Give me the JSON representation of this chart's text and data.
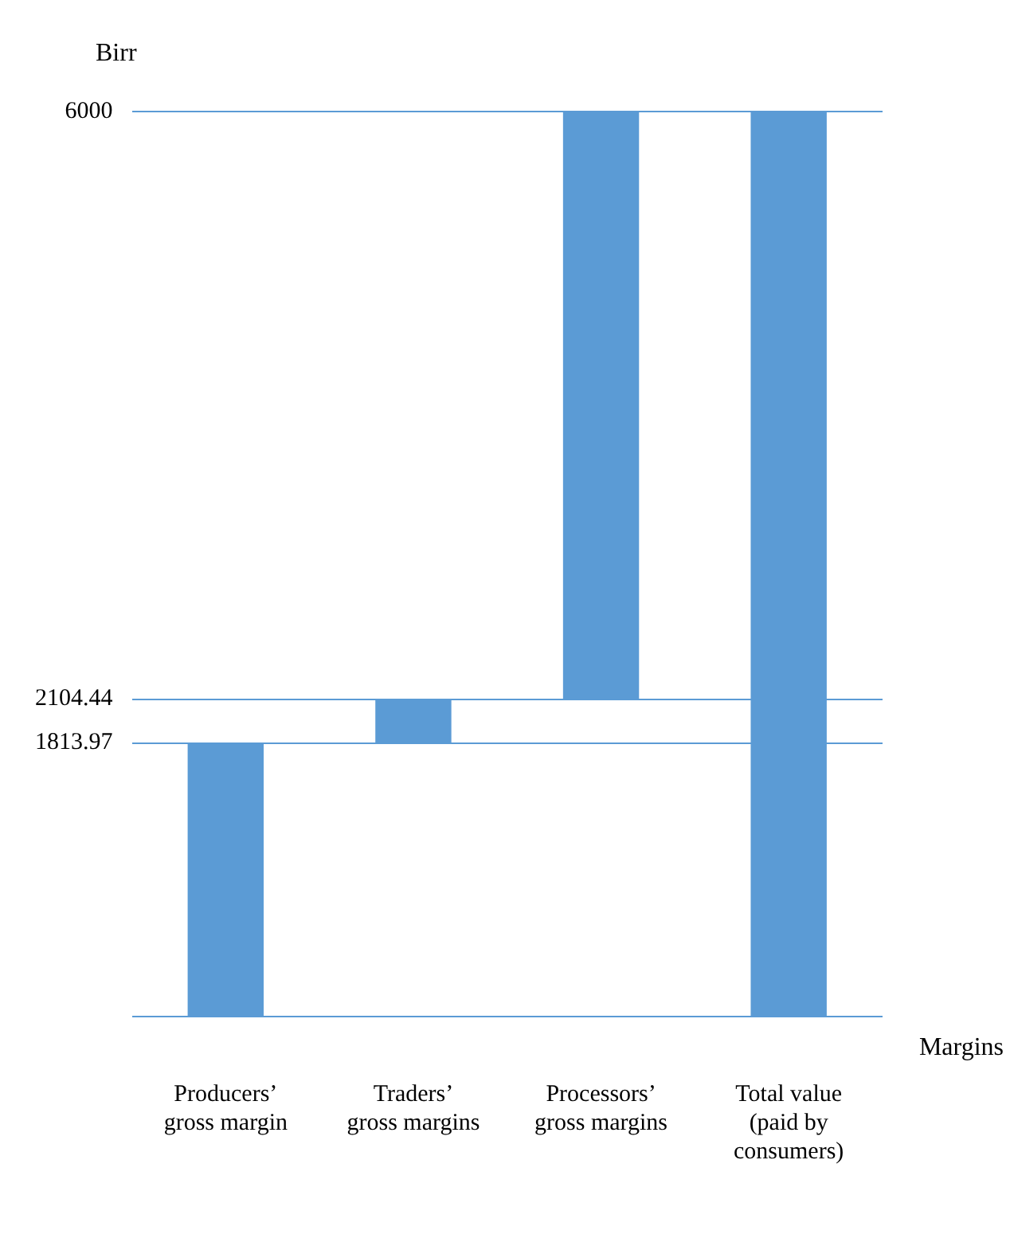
{
  "chart_data": {
    "type": "bar",
    "xlabel": "Margins",
    "ylabel": "Birr",
    "categories": [
      "Producers’ gross margin",
      "Traders’ gross margins",
      "Processors’ gross margins",
      "Total value (paid by consumers)"
    ],
    "values": [
      1813.97,
      290.47,
      3895.56,
      6000
    ],
    "base": [
      0,
      1813.97,
      2104.44,
      0
    ],
    "color": "#5b9bd5",
    "ylim": [
      0,
      6000
    ],
    "yticks": [
      {
        "value": 0,
        "label": null
      },
      1813.97,
      2104.44,
      6000
    ],
    "grid": "y",
    "legend": false
  }
}
